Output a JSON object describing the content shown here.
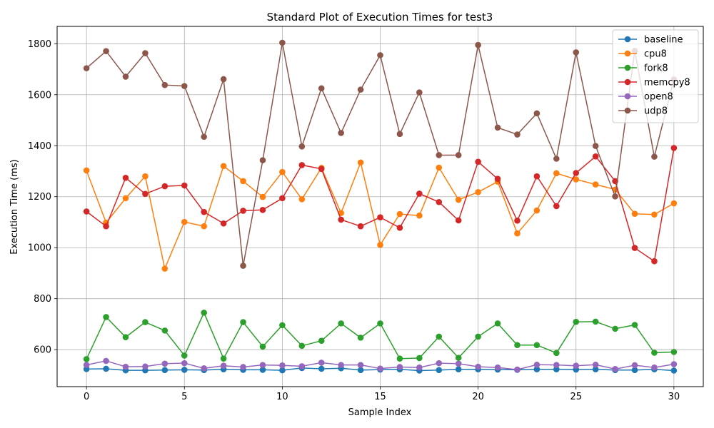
{
  "chart_data": {
    "type": "line",
    "title": "Standard Plot of Execution Times for test3",
    "xlabel": "Sample Index",
    "ylabel": "Execution Time (ms)",
    "xlim": [
      -1.5,
      31.5
    ],
    "ylim": [
      455,
      1868
    ],
    "xticks": [
      0,
      5,
      10,
      15,
      20,
      25,
      30
    ],
    "yticks": [
      600,
      800,
      1000,
      1200,
      1400,
      1600,
      1800
    ],
    "grid": true,
    "legend_position": "top-right",
    "x": [
      0,
      1,
      2,
      3,
      4,
      5,
      6,
      7,
      8,
      9,
      10,
      11,
      12,
      13,
      14,
      15,
      16,
      17,
      18,
      19,
      20,
      21,
      22,
      23,
      24,
      25,
      26,
      27,
      28,
      29,
      30
    ],
    "series": [
      {
        "name": "baseline",
        "color": "#1f77b4",
        "values": [
          524,
          525,
          519,
          519,
          520,
          521,
          520,
          523,
          521,
          521,
          519,
          528,
          525,
          527,
          520,
          522,
          523,
          518,
          520,
          523,
          523,
          522,
          521,
          523,
          523,
          522,
          523,
          520,
          520,
          523,
          518
        ]
      },
      {
        "name": "cpu8",
        "color": "#ff7f0e",
        "values": [
          1303,
          1098,
          1194,
          1280,
          918,
          1101,
          1084,
          1320,
          1261,
          1199,
          1297,
          1190,
          1313,
          1136,
          1334,
          1011,
          1132,
          1126,
          1314,
          1188,
          1218,
          1259,
          1056,
          1146,
          1292,
          1268,
          1248,
          1228,
          1133,
          1130,
          1174
        ]
      },
      {
        "name": "fork8",
        "color": "#2ca02c",
        "values": [
          563,
          728,
          649,
          708,
          675,
          577,
          745,
          565,
          708,
          612,
          696,
          615,
          635,
          703,
          647,
          703,
          565,
          567,
          651,
          568,
          651,
          703,
          618,
          618,
          587,
          709,
          710,
          682,
          697,
          588,
          591
        ]
      },
      {
        "name": "memcpy8",
        "color": "#d62728",
        "values": [
          1142,
          1084,
          1274,
          1211,
          1241,
          1244,
          1140,
          1095,
          1145,
          1148,
          1194,
          1324,
          1309,
          1110,
          1084,
          1119,
          1078,
          1212,
          1179,
          1107,
          1337,
          1270,
          1106,
          1280,
          1163,
          1293,
          1358,
          1261,
          999,
          947,
          1391
        ]
      },
      {
        "name": "open8",
        "color": "#9467bd",
        "values": [
          540,
          556,
          533,
          534,
          545,
          547,
          527,
          537,
          532,
          540,
          538,
          535,
          549,
          540,
          540,
          526,
          532,
          530,
          547,
          545,
          533,
          530,
          522,
          541,
          540,
          537,
          541,
          524,
          539,
          530,
          543
        ]
      },
      {
        "name": "udp8",
        "color": "#8c564b",
        "values": [
          1704,
          1771,
          1671,
          1763,
          1638,
          1634,
          1435,
          1661,
          929,
          1343,
          1804,
          1397,
          1625,
          1450,
          1620,
          1755,
          1446,
          1609,
          1363,
          1363,
          1795,
          1471,
          1444,
          1527,
          1349,
          1766,
          1399,
          1201,
          1772,
          1357,
          1660
        ]
      }
    ]
  }
}
